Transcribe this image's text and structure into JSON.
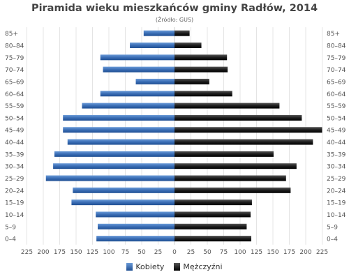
{
  "chart_data": {
    "type": "bar",
    "orientation": "horizontal",
    "title": "Piramida wieku mieszkańców gminy Radłów, 2014",
    "subtitle": "(Źródło: GUS)",
    "categories": [
      "85+",
      "80–84",
      "75–79",
      "70–74",
      "65–69",
      "60–64",
      "55–59",
      "50–54",
      "45–49",
      "40–44",
      "35–39",
      "30–34",
      "25–29",
      "20–24",
      "15–19",
      "10–14",
      "5–9",
      "0–4"
    ],
    "series": [
      {
        "name": "Kobiety",
        "color": "#3a6db5",
        "values": [
          47,
          68,
          113,
          109,
          59,
          113,
          141,
          170,
          170,
          163,
          183,
          185,
          196,
          155,
          157,
          120,
          117,
          119
        ]
      },
      {
        "name": "Mężczyźni",
        "color": "#1c1c1c",
        "values": [
          23,
          41,
          80,
          81,
          53,
          88,
          160,
          194,
          225,
          211,
          151,
          186,
          170,
          177,
          118,
          116,
          110,
          117
        ]
      }
    ],
    "xlim": [
      -225,
      225
    ],
    "x_ticks": [
      "225",
      "200",
      "175",
      "150",
      "125",
      "100",
      "75",
      "50",
      "25",
      "0",
      "25",
      "50",
      "75",
      "100",
      "125",
      "150",
      "175",
      "200",
      "225"
    ],
    "grid": true,
    "legend": "bottom-center"
  }
}
